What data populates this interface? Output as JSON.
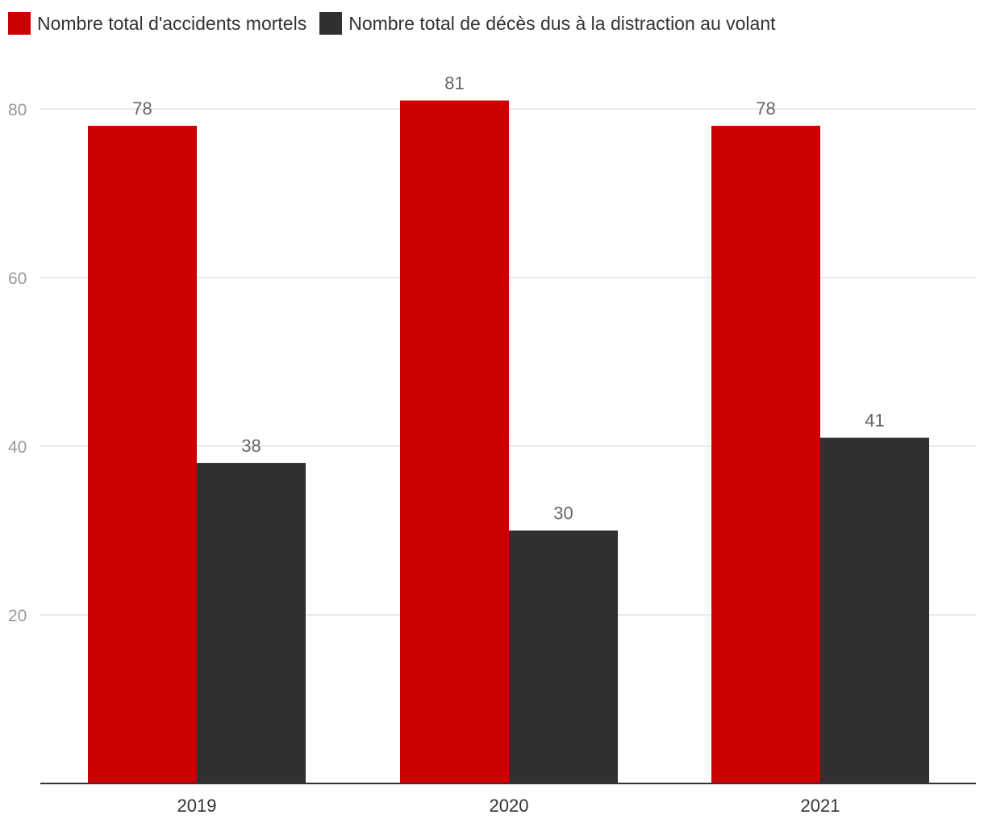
{
  "chart_data": {
    "type": "bar",
    "categories": [
      "2019",
      "2020",
      "2021"
    ],
    "series": [
      {
        "name": "Nombre total d'accidents mortels",
        "color": "#cc0000",
        "values": [
          78,
          81,
          78
        ]
      },
      {
        "name": "Nombre total de décès dus à la distraction au volant",
        "color": "#303030",
        "values": [
          38,
          30,
          41
        ]
      }
    ],
    "yticks": [
      20,
      40,
      60,
      80
    ],
    "ylim": [
      0,
      80
    ],
    "title": "",
    "xlabel": "",
    "ylabel": "",
    "legend_position": "top-left",
    "grid": true
  }
}
